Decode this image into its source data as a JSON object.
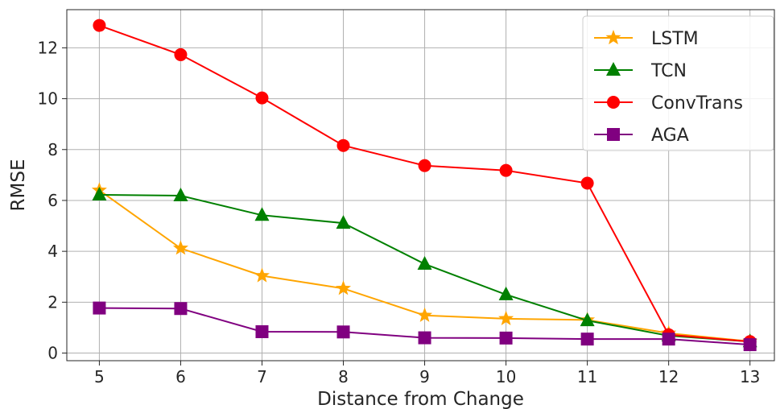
{
  "chart_data": {
    "type": "line",
    "xlabel": "Distance from Change",
    "ylabel": "RMSE",
    "x": [
      5,
      6,
      7,
      8,
      9,
      10,
      11,
      12,
      13
    ],
    "xlim": [
      4.6,
      13.3
    ],
    "ylim": [
      -0.3,
      13.5
    ],
    "xticks": [
      5,
      6,
      7,
      8,
      9,
      10,
      11,
      12,
      13
    ],
    "yticks": [
      0,
      2,
      4,
      6,
      8,
      10,
      12
    ],
    "grid": true,
    "legend": "top-right",
    "series": [
      {
        "name": "LSTM",
        "color": "#ffa500",
        "marker": "star",
        "values": [
          6.4,
          4.12,
          3.04,
          2.54,
          1.48,
          1.35,
          1.3,
          0.78,
          0.46
        ]
      },
      {
        "name": "TCN",
        "color": "#008000",
        "marker": "triangle",
        "values": [
          6.22,
          6.19,
          5.42,
          5.11,
          3.5,
          2.3,
          1.28,
          0.68,
          0.45
        ]
      },
      {
        "name": "ConvTrans",
        "color": "#ff0000",
        "marker": "circle",
        "values": [
          12.88,
          11.73,
          10.03,
          8.16,
          7.37,
          7.18,
          6.68,
          0.72,
          0.45
        ]
      },
      {
        "name": "AGA",
        "color": "#800080",
        "marker": "square",
        "values": [
          1.77,
          1.75,
          0.84,
          0.83,
          0.6,
          0.59,
          0.55,
          0.55,
          0.33
        ]
      }
    ]
  }
}
